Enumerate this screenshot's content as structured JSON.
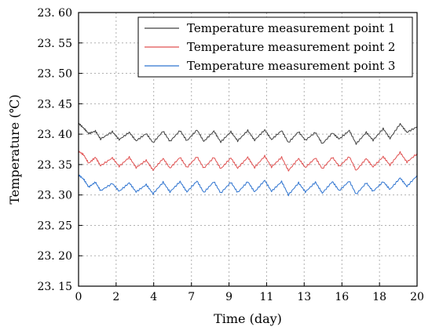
{
  "chart_data": {
    "type": "line",
    "xlabel": "Time (day)",
    "ylabel": "Temperature (℃)",
    "xlim": [
      0,
      20
    ],
    "ylim": [
      23.15,
      23.6
    ],
    "x_tick_labels": [
      "0",
      "2",
      "4",
      "7",
      "9",
      "11",
      "13",
      "16",
      "18",
      "20"
    ],
    "x_tick_values": [
      0,
      2.22,
      4.44,
      6.67,
      8.89,
      11.11,
      13.33,
      15.56,
      17.78,
      20
    ],
    "y_tick_labels": [
      "23. 15",
      "23. 20",
      "23. 25",
      "23. 30",
      "23. 35",
      "23. 40",
      "23. 45",
      "23. 50",
      "23. 55",
      "23. 60"
    ],
    "y_tick_values": [
      23.15,
      23.2,
      23.25,
      23.3,
      23.35,
      23.4,
      23.45,
      23.5,
      23.55,
      23.6
    ],
    "grid": true,
    "legend_position": "top-right",
    "series": [
      {
        "name": "Temperature measurement point 1",
        "color": "#404040",
        "x": [
          0,
          0.3,
          0.6,
          1,
          1.3,
          2,
          2.4,
          3,
          3.4,
          4,
          4.4,
          5,
          5.4,
          6,
          6.4,
          7,
          7.4,
          8,
          8.4,
          9,
          9.4,
          10,
          10.4,
          11,
          11.4,
          12,
          12.4,
          13,
          13.4,
          14,
          14.4,
          15,
          15.4,
          16,
          16.4,
          17,
          17.4,
          18,
          18.4,
          19,
          19.4,
          20
        ],
        "y": [
          23.418,
          23.41,
          23.401,
          23.405,
          23.392,
          23.404,
          23.391,
          23.403,
          23.389,
          23.401,
          23.386,
          23.405,
          23.388,
          23.406,
          23.389,
          23.407,
          23.388,
          23.405,
          23.387,
          23.404,
          23.389,
          23.406,
          23.39,
          23.407,
          23.391,
          23.406,
          23.386,
          23.404,
          23.39,
          23.403,
          23.384,
          23.402,
          23.392,
          23.406,
          23.384,
          23.403,
          23.39,
          23.409,
          23.393,
          23.417,
          23.403,
          23.412
        ]
      },
      {
        "name": "Temperature measurement point 2",
        "color": "#e05050",
        "x": [
          0,
          0.3,
          0.6,
          1,
          1.3,
          2,
          2.4,
          3,
          3.4,
          4,
          4.4,
          5,
          5.4,
          6,
          6.4,
          7,
          7.4,
          8,
          8.4,
          9,
          9.4,
          10,
          10.4,
          11,
          11.4,
          12,
          12.4,
          13,
          13.4,
          14,
          14.4,
          15,
          15.4,
          16,
          16.4,
          17,
          17.4,
          18,
          18.4,
          19,
          19.4,
          20
        ],
        "y": [
          23.372,
          23.366,
          23.352,
          23.362,
          23.348,
          23.361,
          23.347,
          23.362,
          23.345,
          23.357,
          23.341,
          23.36,
          23.344,
          23.362,
          23.345,
          23.363,
          23.344,
          23.362,
          23.343,
          23.361,
          23.344,
          23.362,
          23.345,
          23.364,
          23.346,
          23.362,
          23.34,
          23.36,
          23.345,
          23.361,
          23.343,
          23.362,
          23.347,
          23.363,
          23.34,
          23.36,
          23.346,
          23.363,
          23.349,
          23.37,
          23.354,
          23.368
        ]
      },
      {
        "name": "Temperature measurement point 3",
        "color": "#2f74d0",
        "x": [
          0,
          0.3,
          0.6,
          1,
          1.3,
          2,
          2.4,
          3,
          3.4,
          4,
          4.4,
          5,
          5.4,
          6,
          6.4,
          7,
          7.4,
          8,
          8.4,
          9,
          9.4,
          10,
          10.4,
          11,
          11.4,
          12,
          12.4,
          13,
          13.4,
          14,
          14.4,
          15,
          15.4,
          16,
          16.4,
          17,
          17.4,
          18,
          18.4,
          19,
          19.4,
          20
        ],
        "y": [
          23.333,
          23.326,
          23.313,
          23.321,
          23.307,
          23.319,
          23.306,
          23.32,
          23.305,
          23.317,
          23.302,
          23.321,
          23.305,
          23.322,
          23.305,
          23.323,
          23.304,
          23.322,
          23.303,
          23.321,
          23.304,
          23.322,
          23.305,
          23.324,
          23.306,
          23.322,
          23.3,
          23.32,
          23.305,
          23.321,
          23.303,
          23.322,
          23.307,
          23.323,
          23.301,
          23.32,
          23.306,
          23.322,
          23.309,
          23.328,
          23.314,
          23.332
        ]
      }
    ]
  }
}
